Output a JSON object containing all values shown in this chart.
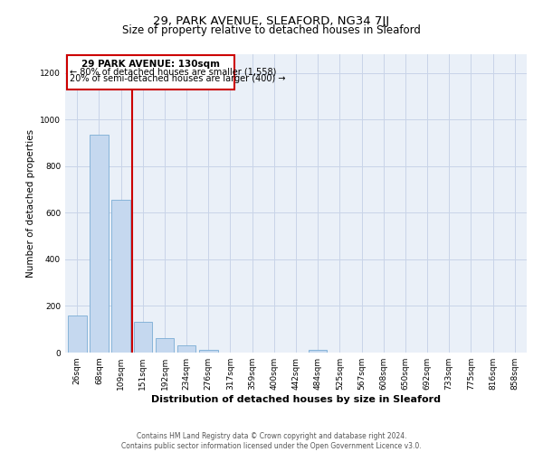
{
  "title": "29, PARK AVENUE, SLEAFORD, NG34 7JJ",
  "subtitle": "Size of property relative to detached houses in Sleaford",
  "xlabel": "Distribution of detached houses by size in Sleaford",
  "ylabel": "Number of detached properties",
  "categories": [
    "26sqm",
    "68sqm",
    "109sqm",
    "151sqm",
    "192sqm",
    "234sqm",
    "276sqm",
    "317sqm",
    "359sqm",
    "400sqm",
    "442sqm",
    "484sqm",
    "525sqm",
    "567sqm",
    "608sqm",
    "650sqm",
    "692sqm",
    "733sqm",
    "775sqm",
    "816sqm",
    "858sqm"
  ],
  "values": [
    160,
    935,
    655,
    130,
    62,
    30,
    13,
    0,
    0,
    0,
    0,
    13,
    0,
    0,
    0,
    0,
    0,
    0,
    0,
    0,
    0
  ],
  "bar_color": "#c5d8ef",
  "bar_edge_color": "#7aadd4",
  "annotation_property": "29 PARK AVENUE: 130sqm",
  "annotation_line1": "← 80% of detached houses are smaller (1,558)",
  "annotation_line2": "20% of semi-detached houses are larger (400) →",
  "vline_color": "#cc0000",
  "box_edge_color": "#cc0000",
  "ylim": [
    0,
    1280
  ],
  "yticks": [
    0,
    200,
    400,
    600,
    800,
    1000,
    1200
  ],
  "background_color": "#ffffff",
  "plot_bg_color": "#eaf0f8",
  "grid_color": "#c8d4e8",
  "footer_line1": "Contains HM Land Registry data © Crown copyright and database right 2024.",
  "footer_line2": "Contains public sector information licensed under the Open Government Licence v3.0."
}
